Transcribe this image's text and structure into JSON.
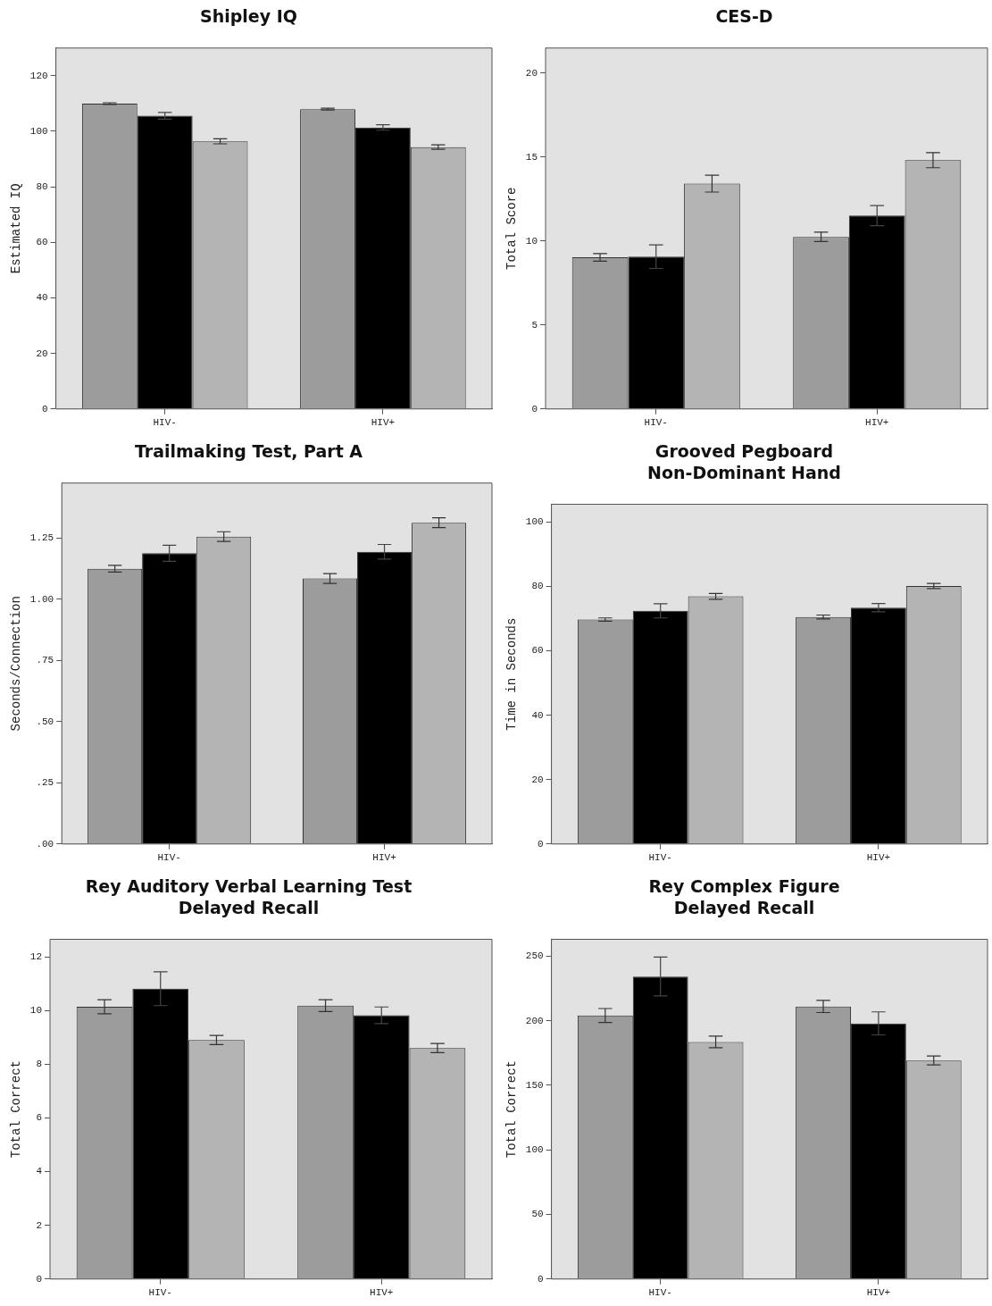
{
  "chart_data": [
    {
      "type": "bar",
      "title": "Shipley IQ",
      "ylabel": "Estimated IQ",
      "categories": [
        "HIV-",
        "HIV+"
      ],
      "ylim": [
        0,
        130
      ],
      "yticks": [
        0,
        20,
        40,
        60,
        80,
        100,
        120
      ],
      "series": [
        {
          "color": "#9c9c9c",
          "values": [
            110,
            108
          ],
          "errors": [
            0.3,
            0.3
          ]
        },
        {
          "color": "#000000",
          "values": [
            105.6,
            101.4
          ],
          "errors": [
            1.2,
            1.0
          ]
        },
        {
          "color": "#b4b4b4",
          "values": [
            96.4,
            94.3
          ],
          "errors": [
            0.9,
            0.8
          ]
        }
      ]
    },
    {
      "type": "bar",
      "title": "CES-D",
      "ylabel": "Total Score",
      "categories": [
        "HIV-",
        "HIV+"
      ],
      "ylim": [
        0,
        21.5
      ],
      "yticks": [
        0,
        5,
        10,
        15,
        20
      ],
      "series": [
        {
          "color": "#9c9c9c",
          "values": [
            9.03,
            10.25
          ],
          "errors": [
            0.23,
            0.28
          ]
        },
        {
          "color": "#000000",
          "values": [
            9.07,
            11.52
          ],
          "errors": [
            0.7,
            0.6
          ]
        },
        {
          "color": "#b4b4b4",
          "values": [
            13.42,
            14.82
          ],
          "errors": [
            0.5,
            0.45
          ]
        }
      ]
    },
    {
      "type": "bar",
      "title": "Trailmaking Test, Part A",
      "ylabel": "Seconds/Connection",
      "categories": [
        "HIV-",
        "HIV+"
      ],
      "ylim": [
        0,
        1.475
      ],
      "yticks": [
        {
          "value": 0,
          "label": ".00"
        },
        {
          "value": 0.25,
          "label": ".25"
        },
        {
          "value": 0.5,
          "label": ".50"
        },
        {
          "value": 0.75,
          "label": ".75"
        },
        {
          "value": 1,
          "label": "1.00"
        },
        {
          "value": 1.25,
          "label": "1.25"
        }
      ],
      "series": [
        {
          "color": "#9c9c9c",
          "values": [
            1.125,
            1.085
          ],
          "errors": [
            0.014,
            0.02
          ]
        },
        {
          "color": "#000000",
          "values": [
            1.188,
            1.194
          ],
          "errors": [
            0.033,
            0.03
          ]
        },
        {
          "color": "#b4b4b4",
          "values": [
            1.256,
            1.313
          ],
          "errors": [
            0.02,
            0.02
          ]
        }
      ]
    },
    {
      "type": "bar",
      "title": "Grooved Pegboard\nNon-Dominant Hand",
      "ylabel": "Time in Seconds",
      "categories": [
        "HIV-",
        "HIV+"
      ],
      "ylim": [
        0,
        105.5
      ],
      "yticks": [
        0,
        20,
        40,
        60,
        80,
        100
      ],
      "series": [
        {
          "color": "#9c9c9c",
          "values": [
            69.7,
            70.5
          ],
          "errors": [
            0.5,
            0.6
          ]
        },
        {
          "color": "#000000",
          "values": [
            72.4,
            73.4
          ],
          "errors": [
            2.2,
            1.3
          ]
        },
        {
          "color": "#b4b4b4",
          "values": [
            76.9,
            80.1
          ],
          "errors": [
            0.9,
            0.8
          ]
        }
      ]
    },
    {
      "type": "bar",
      "title": "Rey Auditory Verbal Learning Test\nDelayed Recall",
      "ylabel": "Total Correct",
      "categories": [
        "HIV-",
        "HIV+"
      ],
      "ylim": [
        0,
        12.65
      ],
      "yticks": [
        0,
        2,
        4,
        6,
        8,
        10,
        12
      ],
      "series": [
        {
          "color": "#9c9c9c",
          "values": [
            10.14,
            10.18
          ],
          "errors": [
            0.26,
            0.22
          ]
        },
        {
          "color": "#000000",
          "values": [
            10.81,
            9.82
          ],
          "errors": [
            0.63,
            0.31
          ]
        },
        {
          "color": "#b4b4b4",
          "values": [
            8.9,
            8.6
          ],
          "errors": [
            0.17,
            0.17
          ]
        }
      ]
    },
    {
      "type": "bar",
      "title": "Rey Complex Figure\nDelayed Recall",
      "ylabel": "Total Correct",
      "categories": [
        "HIV-",
        "HIV+"
      ],
      "ylim": [
        0,
        263
      ],
      "yticks": [
        0,
        50,
        100,
        150,
        200,
        250
      ],
      "series": [
        {
          "color": "#9c9c9c",
          "values": [
            204,
            211
          ],
          "errors": [
            5.4,
            4.7
          ]
        },
        {
          "color": "#000000",
          "values": [
            234.2,
            197.9
          ],
          "errors": [
            15,
            8.9
          ]
        },
        {
          "color": "#b4b4b4",
          "values": [
            183.5,
            169.2
          ],
          "errors": [
            4.5,
            3.5
          ]
        }
      ]
    }
  ]
}
